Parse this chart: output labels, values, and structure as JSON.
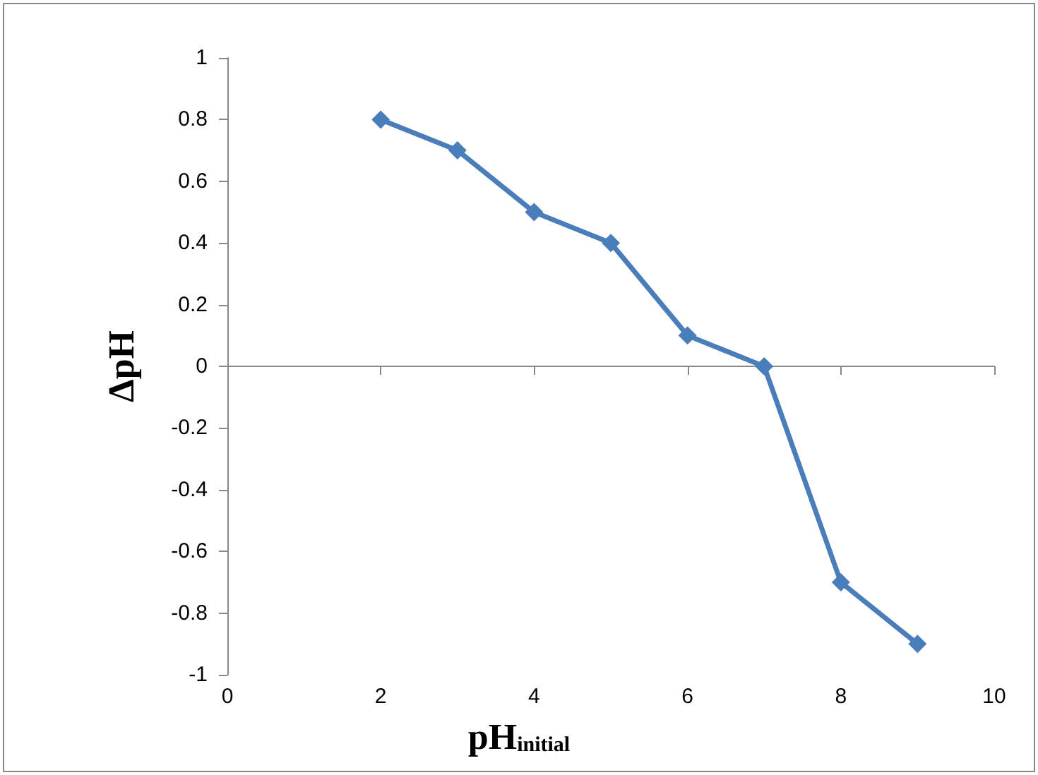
{
  "chart_data": {
    "type": "line",
    "xlabel": "pH$_{initial}$",
    "ylabel": "ΔpH",
    "x": [
      2,
      3,
      4,
      5,
      6,
      7,
      8,
      9
    ],
    "series": [
      {
        "color": "#4a7ebb",
        "values": [
          0.8,
          0.7,
          0.5,
          0.4,
          0.1,
          0,
          -0.7,
          -0.9
        ]
      }
    ],
    "xlim": [
      0,
      10
    ],
    "xticks": [
      0,
      2,
      4,
      6,
      8,
      10
    ],
    "ylim": [
      -1,
      1
    ],
    "yticks": [
      -1,
      -0.8,
      -0.6,
      -0.4,
      -0.2,
      0,
      0.2,
      0.4,
      0.6,
      0.8,
      1
    ],
    "marker": "diamond",
    "line_style": "solid"
  }
}
